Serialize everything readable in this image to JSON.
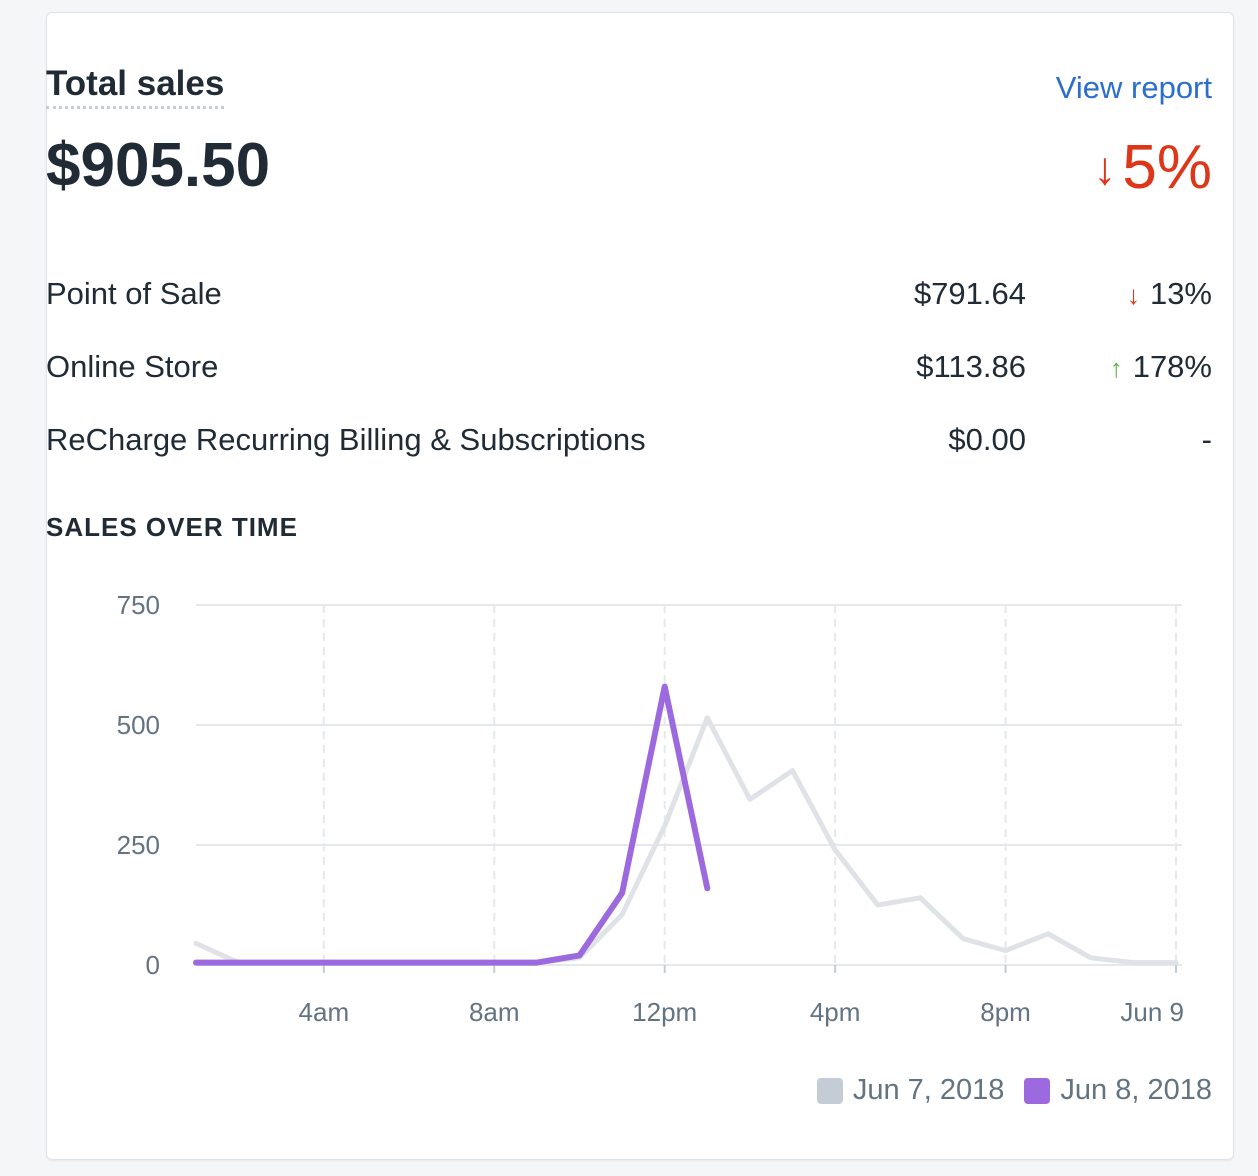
{
  "card": {
    "title": "Total sales",
    "view_report_label": "View report",
    "total_amount": "$905.50",
    "total_change": "5%",
    "total_change_direction": "down"
  },
  "channels": [
    {
      "name": "Point of Sale",
      "amount": "$791.64",
      "change": "13%",
      "direction": "down"
    },
    {
      "name": "Online Store",
      "amount": "$113.86",
      "change": "178%",
      "direction": "up"
    },
    {
      "name": "ReCharge Recurring Billing & Subscriptions",
      "amount": "$0.00",
      "change": "-",
      "direction": "none"
    }
  ],
  "section_label": "SALES OVER TIME",
  "colors": {
    "accent_link": "#2c6ecb",
    "negative": "#de3618",
    "positive": "#50b83c",
    "series_previous": "#dfe3e8",
    "series_current": "#9c6ade",
    "legend_previous": "#c4cdd5"
  },
  "chart_data": {
    "type": "line",
    "y_ticks": [
      "750",
      "500",
      "250",
      "0"
    ],
    "ylim": [
      0,
      750
    ],
    "x_ticks": [
      "4am",
      "8am",
      "12pm",
      "4pm",
      "8pm",
      "Jun 9"
    ],
    "x_tick_hours": [
      4,
      8,
      12,
      16,
      20,
      24
    ],
    "xlim_hours": [
      1,
      24
    ],
    "grid": true,
    "legend_position": "bottom-right",
    "series": [
      {
        "name": "Jun 7, 2018",
        "color": "#dfe3e8",
        "x": [
          1,
          2,
          3,
          4,
          5,
          6,
          7,
          8,
          9,
          10,
          11,
          12,
          13,
          14,
          15,
          16,
          17,
          18,
          19,
          20,
          21,
          22,
          23,
          24
        ],
        "y": [
          45,
          5,
          5,
          5,
          5,
          5,
          5,
          5,
          5,
          15,
          105,
          290,
          515,
          345,
          405,
          240,
          125,
          140,
          55,
          30,
          65,
          15,
          5,
          5
        ]
      },
      {
        "name": "Jun 8, 2018",
        "color": "#9c6ade",
        "x": [
          1,
          2,
          3,
          4,
          5,
          6,
          7,
          8,
          9,
          10,
          11,
          12,
          13
        ],
        "y": [
          5,
          5,
          5,
          5,
          5,
          5,
          5,
          5,
          5,
          20,
          150,
          580,
          160
        ]
      }
    ]
  }
}
